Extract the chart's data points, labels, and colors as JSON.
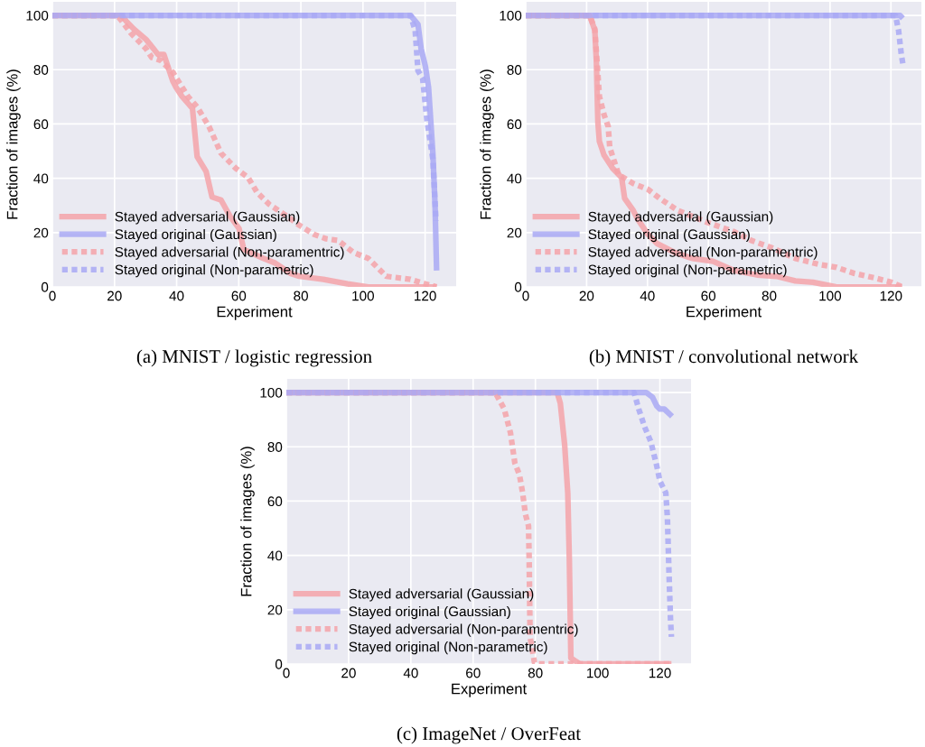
{
  "chart_data": [
    {
      "type": "line",
      "xlabel": "Experiment",
      "ylabel": "Fraction of images (%)",
      "xlim": [
        0,
        130
      ],
      "ylim": [
        0,
        105
      ],
      "xticks": [
        0,
        20,
        40,
        60,
        80,
        100,
        120
      ],
      "yticks": [
        0,
        20,
        40,
        60,
        80,
        100
      ],
      "grid": true,
      "legend": "bottom left",
      "annotations": [
        "(a) MNIST / logistic regression"
      ],
      "series": [
        {
          "name": "Stayed adversarial (Gaussian)",
          "color": "#f4a3a9",
          "line_style": "solid",
          "x": [
            0,
            22.4,
            23.8,
            26.2,
            30.1,
            32.5,
            34,
            35.9,
            38.8,
            39.8,
            41.7,
            45.1,
            46.6,
            49.5,
            51.4,
            54.3,
            57.2,
            60.1,
            61.6,
            67.9,
            71.7,
            76.6,
            79.5,
            87.2,
            95,
            101.7,
            123.7
          ],
          "values": [
            100,
            100,
            97.8,
            95,
            91.2,
            87.8,
            85.6,
            85.6,
            75.7,
            73.5,
            70.2,
            65.7,
            48,
            42.5,
            33.1,
            32,
            26,
            21.5,
            13.8,
            10.5,
            8.8,
            5,
            3.9,
            2.8,
            1.1,
            0,
            0
          ]
        },
        {
          "name": "Stayed original (Gaussian)",
          "color": "#a9a9f4",
          "line_style": "solid",
          "x": [
            0,
            115.3,
            117.7,
            118.7,
            120.1,
            121.1,
            122.5,
            123.2,
            123.7
          ],
          "values": [
            100,
            100,
            96.7,
            87.8,
            81.2,
            73.5,
            49.2,
            30,
            6
          ]
        },
        {
          "name": "Stayed adversarial (Non-paramentric)",
          "color": "#f4a3a9",
          "line_style": "dotted",
          "x": [
            0,
            20.9,
            22.4,
            25.3,
            30.1,
            32,
            34.9,
            38.8,
            43.6,
            46.6,
            50.4,
            54.3,
            59.1,
            63,
            65.9,
            69.8,
            75.6,
            79.5,
            84.3,
            88.2,
            92,
            96.9,
            101.7,
            104.6,
            107.5,
            115.3,
            120.1,
            123.7
          ],
          "values": [
            100,
            100,
            97.8,
            93.4,
            87.8,
            84.5,
            83.4,
            79,
            70.2,
            66.3,
            59.1,
            49.2,
            43.6,
            40.3,
            34.8,
            30.4,
            26,
            22.7,
            19.3,
            17.7,
            17.1,
            12.7,
            10.5,
            7.2,
            3.9,
            2.8,
            1.1,
            0
          ]
        },
        {
          "name": "Stayed original (Non-parametric)",
          "color": "#a9a9f4",
          "line_style": "dotted",
          "x": [
            0,
            115.3,
            116.8,
            117.7,
            119.2,
            120.6,
            122.5,
            123.5
          ],
          "values": [
            100,
            100,
            94.5,
            79.6,
            76.8,
            61.3,
            47,
            24.3
          ]
        }
      ]
    },
    {
      "type": "line",
      "xlabel": "Experiment",
      "ylabel": "Fraction of images (%)",
      "xlim": [
        0,
        130
      ],
      "ylim": [
        0,
        105
      ],
      "xticks": [
        0,
        20,
        40,
        60,
        80,
        100,
        120
      ],
      "yticks": [
        0,
        20,
        40,
        60,
        80,
        100
      ],
      "grid": true,
      "legend": "bottom left",
      "annotations": [
        "(b) MNIST / convolutional network"
      ],
      "series": [
        {
          "name": "Stayed adversarial (Gaussian)",
          "color": "#f4a3a9",
          "line_style": "solid",
          "x": [
            0,
            21,
            22.7,
            23.2,
            23.7,
            24.2,
            25.2,
            25.7,
            28.6,
            31.5,
            32.5,
            35.3,
            36.8,
            40.2,
            43.1,
            48.9,
            54.7,
            61.5,
            68.3,
            76,
            82.4,
            88.6,
            94.4,
            102.1,
            123.7
          ],
          "values": [
            100,
            100,
            94.5,
            83.4,
            60.8,
            53.6,
            50.3,
            48.6,
            43.6,
            40.3,
            32.6,
            28.2,
            24.9,
            19.3,
            16,
            12.7,
            10.5,
            9.4,
            6.1,
            4.4,
            3.9,
            2.2,
            1.7,
            0,
            0
          ]
        },
        {
          "name": "Stayed original (Gaussian)",
          "color": "#a9a9f4",
          "line_style": "solid",
          "x": [
            0,
            123,
            123.9
          ],
          "values": [
            100,
            100,
            98.9
          ]
        },
        {
          "name": "Stayed adversarial (Non-paramentric)",
          "color": "#f4a3a9",
          "line_style": "dotted",
          "x": [
            0,
            21,
            22.7,
            24.2,
            25.7,
            27.1,
            27.6,
            30.5,
            35.3,
            40.2,
            44,
            49.9,
            59.5,
            68.3,
            74.1,
            80.9,
            88.6,
            96.3,
            102.1,
            107.9,
            114.7,
            120.1,
            123.7
          ],
          "values": [
            100,
            100,
            95,
            70.2,
            63.5,
            59.1,
            51.4,
            41.4,
            38.1,
            35.9,
            32.6,
            28.2,
            23.8,
            20.4,
            17.1,
            14.4,
            10.5,
            8.3,
            7.2,
            5,
            3.3,
            1.7,
            0
          ]
        },
        {
          "name": "Stayed original (Non-parametric)",
          "color": "#a9a9f4",
          "line_style": "dotted",
          "x": [
            0,
            121.5,
            122.5,
            123.4,
            123.9
          ],
          "values": [
            100,
            100,
            94.5,
            85.6,
            82.3
          ]
        }
      ]
    },
    {
      "type": "line",
      "xlabel": "Experiment",
      "ylabel": "Fraction of images (%)",
      "xlim": [
        0,
        130
      ],
      "ylim": [
        0,
        105
      ],
      "xticks": [
        0,
        20,
        40,
        60,
        80,
        100,
        120
      ],
      "yticks": [
        0,
        20,
        40,
        60,
        80,
        100
      ],
      "grid": true,
      "legend": "bottom left",
      "annotations": [
        "(c) ImageNet / OverFeat"
      ],
      "series": [
        {
          "name": "Stayed adversarial (Gaussian)",
          "color": "#f4a3a9",
          "line_style": "solid",
          "x": [
            0,
            87,
            88,
            89.4,
            90.4,
            90.9,
            91.4,
            92.8,
            94.3,
            123.7
          ],
          "values": [
            100,
            100,
            96.1,
            80.7,
            63,
            38.7,
            2.2,
            1.1,
            0,
            0
          ]
        },
        {
          "name": "Stayed original (Gaussian)",
          "color": "#a9a9f4",
          "line_style": "solid",
          "x": [
            0,
            115.6,
            117.6,
            119,
            120,
            121.4,
            122.9,
            123.9
          ],
          "values": [
            100,
            100,
            98.3,
            95,
            93.9,
            93.9,
            92.3,
            91.2
          ]
        },
        {
          "name": "Stayed adversarial (Non-paramentric)",
          "color": "#f4a3a9",
          "line_style": "dotted",
          "x": [
            0,
            67.1,
            70,
            72,
            73.4,
            74.9,
            75.9,
            76.8,
            77.8,
            78,
            78.3,
            79.7,
            80.7,
            123.7
          ],
          "values": [
            100,
            100,
            93.9,
            85.1,
            74,
            69.6,
            63,
            55.2,
            50.8,
            38.7,
            10,
            0.6,
            0,
            0
          ]
        },
        {
          "name": "Stayed original (Non-parametric)",
          "color": "#a9a9f4",
          "line_style": "dotted",
          "x": [
            0,
            111.7,
            113.2,
            115.1,
            117.1,
            119,
            120,
            121.9,
            122.4,
            122.9,
            123.4,
            123.7
          ],
          "values": [
            100,
            100,
            93.9,
            87.3,
            81.8,
            72.9,
            67.4,
            63,
            54.1,
            34.3,
            16.6,
            10
          ]
        }
      ]
    }
  ]
}
